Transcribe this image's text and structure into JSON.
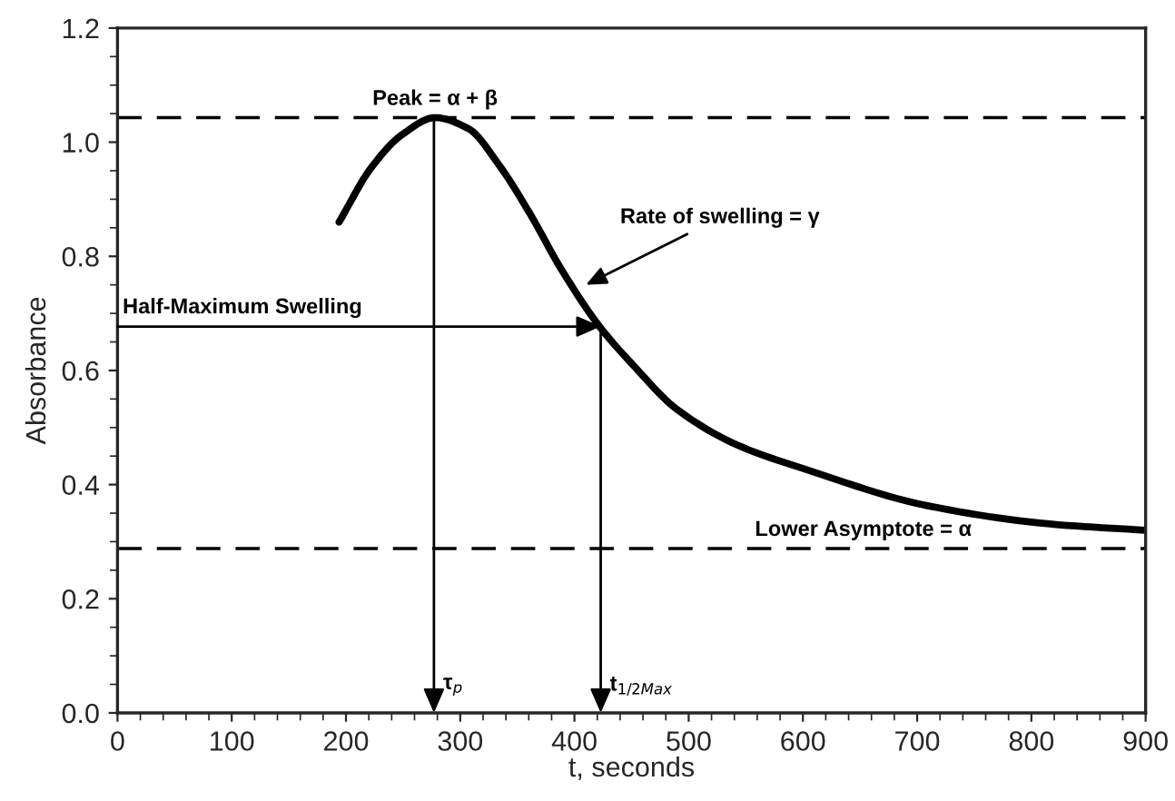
{
  "chart_data": {
    "type": "line",
    "xlabel": "t, seconds",
    "ylabel": "Absorbance",
    "xlim": [
      0,
      900
    ],
    "ylim": [
      0,
      1.2
    ],
    "xticks": [
      0,
      100,
      200,
      300,
      400,
      500,
      600,
      700,
      800,
      900
    ],
    "yticks": [
      {
        "value": 0,
        "label": "0.0"
      },
      {
        "value": 0.2,
        "label": "0.2"
      },
      {
        "value": 0.4,
        "label": "0.4"
      },
      {
        "value": 0.6,
        "label": "0.6"
      },
      {
        "value": 0.8,
        "label": "0.8"
      },
      {
        "value": 1.0,
        "label": "1.0"
      },
      {
        "value": 1.2,
        "label": "1.2"
      }
    ],
    "series": [
      {
        "color": "#000000",
        "x": [
          194,
          222,
          249,
          278,
          307,
          334,
          361,
          388,
          422,
          452,
          489,
          543,
          602,
          709,
          816,
          900
        ],
        "values": [
          0.86,
          0.955,
          1.013,
          1.043,
          1.024,
          0.96,
          0.875,
          0.779,
          0.677,
          0.608,
          0.533,
          0.469,
          0.427,
          0.363,
          0.331,
          0.32
        ]
      }
    ],
    "ref_lines": [
      {
        "axis": "y",
        "value": 1.043,
        "label": "Peak = α + β",
        "color": "#000000",
        "line_style": "dashed"
      },
      {
        "axis": "y",
        "value": 0.288,
        "label": "Lower Asymptote = α",
        "color": "#000000",
        "line_style": "dashed"
      }
    ],
    "annotations": [
      {
        "text": "Rate of swelling = γ",
        "x": 410,
        "y": 0.75
      },
      {
        "text": "Half-Maximum Swelling",
        "x": 423,
        "y": 0.677
      },
      {
        "text": "τ$_{p}$",
        "x": 277,
        "y": 1.043
      },
      {
        "text": "t$_{1/2Max}$",
        "x": 423,
        "y": 0.677
      }
    ],
    "grid": false,
    "marker": "none",
    "line_style": "solid"
  }
}
